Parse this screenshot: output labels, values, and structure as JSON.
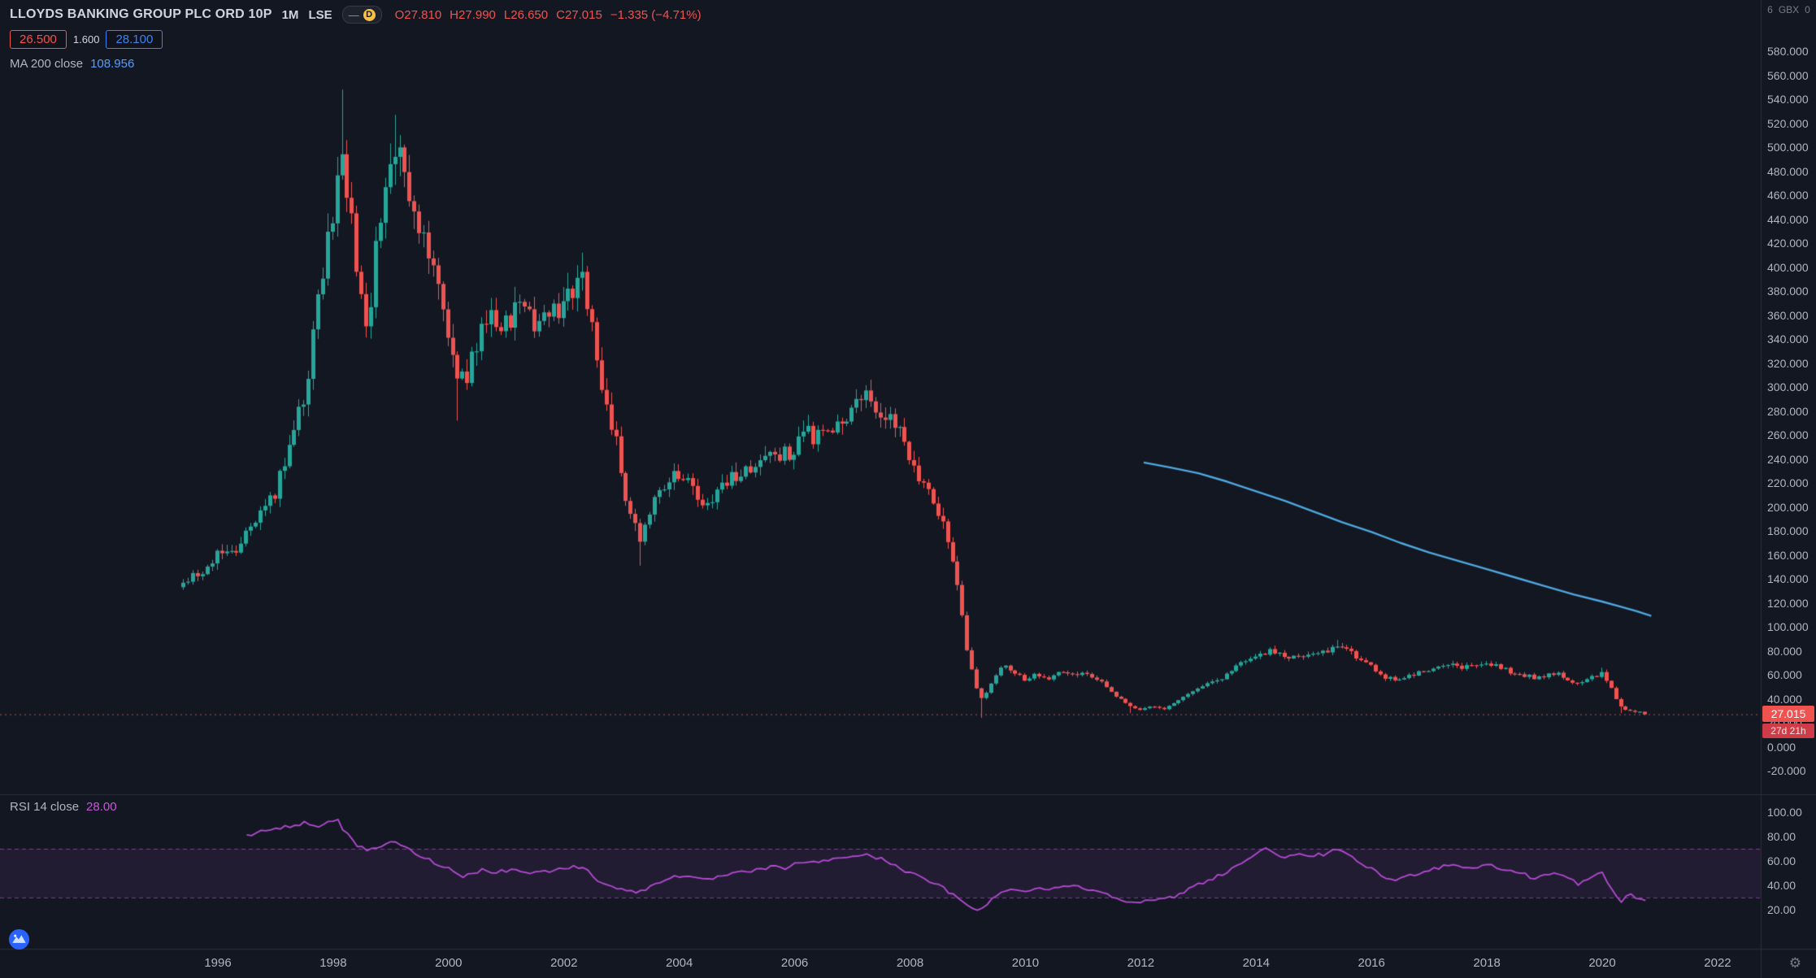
{
  "header": {
    "symbol": "LLOYDS BANKING GROUP PLC ORD 10P",
    "interval": "1M",
    "exchange": "LSE",
    "d_badge": "D",
    "dash_icon": "—",
    "ohlc": {
      "open": "O27.810",
      "high": "H27.990",
      "low": "L26.650",
      "close": "C27.015",
      "change": "−1.335 (−4.71%)"
    },
    "bid": "26.500",
    "spread": "1.600",
    "ask": "28.100"
  },
  "legends": {
    "ma": {
      "label": "MA 200 close",
      "value": "108.956"
    },
    "rsi": {
      "label": "RSI 14 close",
      "value": "28.00"
    }
  },
  "axis": {
    "scale_header": {
      "left": "6",
      "currency": "GBX",
      "right": "0"
    },
    "price_ticks": [
      "580.000",
      "560.000",
      "540.000",
      "520.000",
      "500.000",
      "480.000",
      "460.000",
      "440.000",
      "420.000",
      "400.000",
      "380.000",
      "360.000",
      "340.000",
      "320.000",
      "300.000",
      "280.000",
      "260.000",
      "240.000",
      "220.000",
      "200.000",
      "180.000",
      "160.000",
      "140.000",
      "120.000",
      "100.000",
      "80.000",
      "60.000",
      "40.000",
      "20.000",
      "0.000",
      "-20.000"
    ],
    "last_price_label": "27.015",
    "countdown_label": "27d 21h",
    "rsi_ticks": [
      "100.00",
      "80.00",
      "60.00",
      "40.00",
      "20.00"
    ],
    "years": [
      "1996",
      "1998",
      "2000",
      "2002",
      "2004",
      "2006",
      "2008",
      "2010",
      "2012",
      "2014",
      "2016",
      "2018",
      "2020",
      "2022"
    ],
    "gear_icon": "⚙"
  },
  "colors": {
    "background": "#131722",
    "grid": "#2a2e39",
    "text": "#b2b5be",
    "up": "#26a69a",
    "down": "#ef5350",
    "ma": "#4fa8e0",
    "rsi": "#b44bd2",
    "rsi_band_line": "#b36cc4",
    "rsi_band_fill": "rgba(136,61,168,0.13)",
    "price_label_bg": "#ef5350",
    "countdown_bg": "#cf3c47",
    "badge_yellow": "#f8c146"
  },
  "chart_data": {
    "type": "candlestick",
    "title": "LLOYDS BANKING GROUP PLC ORD 10P, 1M, LSE",
    "unit": "GBX",
    "x_range": {
      "start": 1995.4,
      "end": 2020.75
    },
    "y_axis": {
      "min": -20,
      "max": 580,
      "step": 20
    },
    "x_ticks": [
      1996,
      1998,
      2000,
      2002,
      2004,
      2006,
      2008,
      2010,
      2012,
      2014,
      2016,
      2018,
      2020,
      2022
    ],
    "last": {
      "open": 27.81,
      "high": 27.99,
      "low": 26.65,
      "close": 27.015,
      "change": -1.335,
      "change_pct": -4.71
    },
    "volatility": 0.032,
    "close_anchors": [
      [
        1995.4,
        133
      ],
      [
        1995.6,
        142
      ],
      [
        1995.8,
        150
      ],
      [
        1996.0,
        163
      ],
      [
        1996.2,
        158
      ],
      [
        1996.4,
        172
      ],
      [
        1996.6,
        185
      ],
      [
        1996.8,
        198
      ],
      [
        1997.0,
        215
      ],
      [
        1997.2,
        245
      ],
      [
        1997.4,
        275
      ],
      [
        1997.6,
        320
      ],
      [
        1997.8,
        390
      ],
      [
        1998.0,
        445
      ],
      [
        1998.15,
        490
      ],
      [
        1998.3,
        440
      ],
      [
        1998.45,
        385
      ],
      [
        1998.6,
        350
      ],
      [
        1998.75,
        420
      ],
      [
        1998.9,
        470
      ],
      [
        1999.05,
        505
      ],
      [
        1999.2,
        480
      ],
      [
        1999.35,
        455
      ],
      [
        1999.5,
        430
      ],
      [
        1999.65,
        405
      ],
      [
        1999.8,
        385
      ],
      [
        2000.0,
        345
      ],
      [
        2000.15,
        300
      ],
      [
        2000.3,
        310
      ],
      [
        2000.45,
        330
      ],
      [
        2000.6,
        355
      ],
      [
        2000.75,
        365
      ],
      [
        2000.9,
        350
      ],
      [
        2001.1,
        362
      ],
      [
        2001.3,
        372
      ],
      [
        2001.5,
        352
      ],
      [
        2001.7,
        360
      ],
      [
        2001.9,
        368
      ],
      [
        2002.1,
        382
      ],
      [
        2002.3,
        398
      ],
      [
        2002.45,
        355
      ],
      [
        2002.6,
        310
      ],
      [
        2002.75,
        285
      ],
      [
        2002.9,
        255
      ],
      [
        2003.05,
        215
      ],
      [
        2003.2,
        185
      ],
      [
        2003.35,
        172
      ],
      [
        2003.5,
        198
      ],
      [
        2003.65,
        212
      ],
      [
        2003.8,
        220
      ],
      [
        2004.0,
        226
      ],
      [
        2004.2,
        216
      ],
      [
        2004.4,
        206
      ],
      [
        2004.6,
        210
      ],
      [
        2004.8,
        220
      ],
      [
        2005.0,
        228
      ],
      [
        2005.2,
        233
      ],
      [
        2005.4,
        238
      ],
      [
        2005.6,
        246
      ],
      [
        2005.8,
        242
      ],
      [
        2006.0,
        252
      ],
      [
        2006.2,
        262
      ],
      [
        2006.4,
        257
      ],
      [
        2006.6,
        266
      ],
      [
        2006.8,
        276
      ],
      [
        2007.0,
        283
      ],
      [
        2007.2,
        290
      ],
      [
        2007.4,
        286
      ],
      [
        2007.6,
        277
      ],
      [
        2007.8,
        263
      ],
      [
        2008.0,
        242
      ],
      [
        2008.2,
        222
      ],
      [
        2008.4,
        202
      ],
      [
        2008.6,
        185
      ],
      [
        2008.8,
        140
      ],
      [
        2009.0,
        75
      ],
      [
        2009.2,
        38
      ],
      [
        2009.4,
        52
      ],
      [
        2009.6,
        68
      ],
      [
        2009.8,
        62
      ],
      [
        2010.0,
        56
      ],
      [
        2010.2,
        61
      ],
      [
        2010.4,
        56
      ],
      [
        2010.6,
        64
      ],
      [
        2010.8,
        62
      ],
      [
        2011.0,
        60
      ],
      [
        2011.2,
        57
      ],
      [
        2011.4,
        50
      ],
      [
        2011.6,
        41
      ],
      [
        2011.8,
        33
      ],
      [
        2012.0,
        31
      ],
      [
        2012.2,
        33
      ],
      [
        2012.4,
        31
      ],
      [
        2012.6,
        36
      ],
      [
        2012.8,
        43
      ],
      [
        2013.0,
        49
      ],
      [
        2013.2,
        53
      ],
      [
        2013.4,
        58
      ],
      [
        2013.6,
        64
      ],
      [
        2013.8,
        71
      ],
      [
        2014.0,
        77
      ],
      [
        2014.2,
        80
      ],
      [
        2014.4,
        76
      ],
      [
        2014.6,
        74
      ],
      [
        2014.8,
        77
      ],
      [
        2015.0,
        76
      ],
      [
        2015.2,
        79
      ],
      [
        2015.4,
        84
      ],
      [
        2015.6,
        79
      ],
      [
        2015.8,
        73
      ],
      [
        2016.0,
        67
      ],
      [
        2016.2,
        59
      ],
      [
        2016.4,
        55
      ],
      [
        2016.6,
        58
      ],
      [
        2016.8,
        61
      ],
      [
        2017.0,
        65
      ],
      [
        2017.2,
        67
      ],
      [
        2017.4,
        70
      ],
      [
        2017.6,
        66
      ],
      [
        2017.8,
        67
      ],
      [
        2018.0,
        69
      ],
      [
        2018.2,
        66
      ],
      [
        2018.4,
        63
      ],
      [
        2018.6,
        61
      ],
      [
        2018.8,
        57
      ],
      [
        2019.0,
        59
      ],
      [
        2019.2,
        61
      ],
      [
        2019.4,
        57
      ],
      [
        2019.6,
        51
      ],
      [
        2019.8,
        57
      ],
      [
        2020.0,
        62
      ],
      [
        2020.15,
        50
      ],
      [
        2020.3,
        33
      ],
      [
        2020.45,
        31
      ],
      [
        2020.6,
        29
      ],
      [
        2020.75,
        27
      ]
    ],
    "wick_extremes": [
      [
        1998.15,
        "high",
        548
      ],
      [
        1999.05,
        "high",
        527
      ],
      [
        2000.15,
        "low",
        272
      ],
      [
        2002.3,
        "high",
        412
      ],
      [
        2003.35,
        "low",
        151
      ],
      [
        2009.2,
        "low",
        24
      ],
      [
        2011.8,
        "low",
        28
      ],
      [
        2015.4,
        "high",
        89
      ],
      [
        2020.0,
        "high",
        66
      ],
      [
        2020.3,
        "low",
        28
      ]
    ],
    "ma200": {
      "label": "MA 200 close",
      "current": 108.956,
      "points": [
        [
          2012.05,
          237
        ],
        [
          2012.5,
          233
        ],
        [
          2013.0,
          228
        ],
        [
          2013.5,
          221
        ],
        [
          2014.0,
          213
        ],
        [
          2014.5,
          205
        ],
        [
          2015.0,
          196
        ],
        [
          2015.5,
          187
        ],
        [
          2016.0,
          179
        ],
        [
          2016.5,
          170
        ],
        [
          2017.0,
          162
        ],
        [
          2017.5,
          155
        ],
        [
          2018.0,
          148
        ],
        [
          2018.5,
          141
        ],
        [
          2019.0,
          134
        ],
        [
          2019.5,
          127
        ],
        [
          2020.0,
          121
        ],
        [
          2020.3,
          117
        ],
        [
          2020.6,
          113
        ],
        [
          2020.85,
          109
        ]
      ]
    },
    "rsi14": {
      "label": "RSI 14 close",
      "current": 28.0,
      "upper_band": 70,
      "lower_band": 30,
      "scale": [
        0,
        100
      ],
      "ticks": [
        100,
        80,
        60,
        40,
        20
      ],
      "points": [
        [
          1996.5,
          80
        ],
        [
          1996.7,
          84
        ],
        [
          1996.9,
          86
        ],
        [
          1997.1,
          87
        ],
        [
          1997.3,
          89
        ],
        [
          1997.5,
          91
        ],
        [
          1997.7,
          88
        ],
        [
          1997.9,
          92
        ],
        [
          1998.05,
          95
        ],
        [
          1998.2,
          84
        ],
        [
          1998.4,
          73
        ],
        [
          1998.6,
          68
        ],
        [
          1998.8,
          72
        ],
        [
          1999.0,
          76
        ],
        [
          1999.2,
          72
        ],
        [
          1999.4,
          67
        ],
        [
          1999.6,
          62
        ],
        [
          1999.8,
          58
        ],
        [
          2000.0,
          54
        ],
        [
          2000.2,
          47
        ],
        [
          2000.4,
          50
        ],
        [
          2000.6,
          53
        ],
        [
          2000.8,
          51
        ],
        [
          2001.0,
          52
        ],
        [
          2001.2,
          53
        ],
        [
          2001.4,
          50
        ],
        [
          2001.6,
          51
        ],
        [
          2001.8,
          52
        ],
        [
          2002.0,
          54
        ],
        [
          2002.2,
          56
        ],
        [
          2002.4,
          52
        ],
        [
          2002.6,
          44
        ],
        [
          2002.8,
          40
        ],
        [
          2003.0,
          37
        ],
        [
          2003.2,
          34
        ],
        [
          2003.4,
          36
        ],
        [
          2003.6,
          42
        ],
        [
          2003.8,
          46
        ],
        [
          2004.0,
          48
        ],
        [
          2004.2,
          46
        ],
        [
          2004.4,
          44
        ],
        [
          2004.6,
          46
        ],
        [
          2004.8,
          48
        ],
        [
          2005.0,
          50
        ],
        [
          2005.2,
          51
        ],
        [
          2005.4,
          53
        ],
        [
          2005.6,
          55
        ],
        [
          2005.8,
          54
        ],
        [
          2006.0,
          57
        ],
        [
          2006.2,
          60
        ],
        [
          2006.4,
          58
        ],
        [
          2006.6,
          61
        ],
        [
          2006.8,
          63
        ],
        [
          2007.0,
          64
        ],
        [
          2007.2,
          65
        ],
        [
          2007.4,
          63
        ],
        [
          2007.6,
          60
        ],
        [
          2007.8,
          55
        ],
        [
          2008.0,
          50
        ],
        [
          2008.2,
          46
        ],
        [
          2008.4,
          42
        ],
        [
          2008.6,
          37
        ],
        [
          2008.8,
          30
        ],
        [
          2009.0,
          23
        ],
        [
          2009.2,
          20
        ],
        [
          2009.4,
          28
        ],
        [
          2009.6,
          34
        ],
        [
          2009.8,
          37
        ],
        [
          2010.0,
          36
        ],
        [
          2010.2,
          38
        ],
        [
          2010.4,
          36
        ],
        [
          2010.6,
          40
        ],
        [
          2010.8,
          39
        ],
        [
          2011.0,
          38
        ],
        [
          2011.2,
          36
        ],
        [
          2011.4,
          33
        ],
        [
          2011.6,
          30
        ],
        [
          2011.8,
          27
        ],
        [
          2012.0,
          26
        ],
        [
          2012.2,
          28
        ],
        [
          2012.4,
          28
        ],
        [
          2012.6,
          31
        ],
        [
          2012.8,
          36
        ],
        [
          2013.0,
          41
        ],
        [
          2013.2,
          45
        ],
        [
          2013.4,
          49
        ],
        [
          2013.6,
          54
        ],
        [
          2013.8,
          60
        ],
        [
          2014.0,
          66
        ],
        [
          2014.2,
          70
        ],
        [
          2014.4,
          65
        ],
        [
          2014.6,
          63
        ],
        [
          2014.8,
          65
        ],
        [
          2015.0,
          64
        ],
        [
          2015.2,
          66
        ],
        [
          2015.4,
          69
        ],
        [
          2015.6,
          64
        ],
        [
          2015.8,
          59
        ],
        [
          2016.0,
          53
        ],
        [
          2016.2,
          47
        ],
        [
          2016.4,
          44
        ],
        [
          2016.6,
          47
        ],
        [
          2016.8,
          50
        ],
        [
          2017.0,
          53
        ],
        [
          2017.2,
          55
        ],
        [
          2017.4,
          58
        ],
        [
          2017.6,
          54
        ],
        [
          2017.8,
          55
        ],
        [
          2018.0,
          57
        ],
        [
          2018.2,
          54
        ],
        [
          2018.4,
          52
        ],
        [
          2018.6,
          50
        ],
        [
          2018.8,
          46
        ],
        [
          2019.0,
          48
        ],
        [
          2019.2,
          50
        ],
        [
          2019.4,
          46
        ],
        [
          2019.6,
          41
        ],
        [
          2019.8,
          46
        ],
        [
          2020.0,
          50
        ],
        [
          2020.15,
          38
        ],
        [
          2020.3,
          26
        ],
        [
          2020.45,
          33
        ],
        [
          2020.6,
          29
        ],
        [
          2020.75,
          28
        ]
      ]
    }
  }
}
